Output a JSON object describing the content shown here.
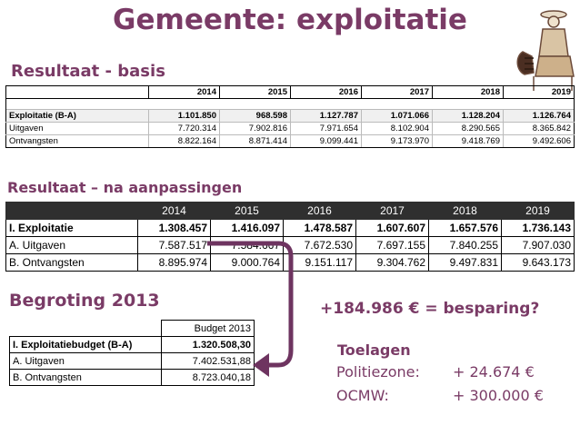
{
  "title": "Gemeente: exploitatie",
  "section1": "Resultaat - basis",
  "section2": "Resultaat – na aanpassingen",
  "section3": "Begroting 2013",
  "years": [
    "2014",
    "2015",
    "2016",
    "2017",
    "2018",
    "2019"
  ],
  "table1": {
    "rows": [
      {
        "label": "Exploitatie (B-A)",
        "values": [
          "1.101.850",
          "968.598",
          "1.127.787",
          "1.071.066",
          "1.128.204",
          "1.126.764"
        ]
      },
      {
        "label": "Uitgaven",
        "values": [
          "7.720.314",
          "7.902.816",
          "7.971.654",
          "8.102.904",
          "8.290.565",
          "8.365.842"
        ]
      },
      {
        "label": "Ontvangsten",
        "values": [
          "8.822.164",
          "8.871.414",
          "9.099.441",
          "9.173.970",
          "9.418.769",
          "9.492.606"
        ]
      }
    ]
  },
  "table2": {
    "rows": [
      {
        "label": "I.  Exploitatie",
        "values": [
          "1.308.457",
          "1.416.097",
          "1.478.587",
          "1.607.607",
          "1.657.576",
          "1.736.143"
        ]
      },
      {
        "label": "A.  Uitgaven",
        "values": [
          "7.587.517",
          "7.584.667",
          "7.672.530",
          "7.697.155",
          "7.840.255",
          "7.907.030"
        ]
      },
      {
        "label": "B. Ontvangsten",
        "values": [
          "8.895.974",
          "9.000.764",
          "9.151.117",
          "9.304.762",
          "9.497.831",
          "9.643.173"
        ]
      }
    ]
  },
  "table3": {
    "header": "Budget 2013",
    "rows": [
      {
        "label": "I. Exploitatiebudget (B-A)",
        "value": "1.320.508,30"
      },
      {
        "label": "A. Uitgaven",
        "value": "7.402.531,88"
      },
      {
        "label": "B. Ontvangsten",
        "value": "8.723.040,18"
      }
    ]
  },
  "saving": "+184.986 € = besparing?",
  "toelagen": {
    "title": "Toelagen",
    "items": [
      {
        "label": "Politiezone:",
        "value": "+ 24.674 €"
      },
      {
        "label": "OCMW:",
        "value": "+ 300.000 €"
      }
    ]
  },
  "colors": {
    "accent": "#7a3b66",
    "header_dark": "#2f2f2f"
  }
}
